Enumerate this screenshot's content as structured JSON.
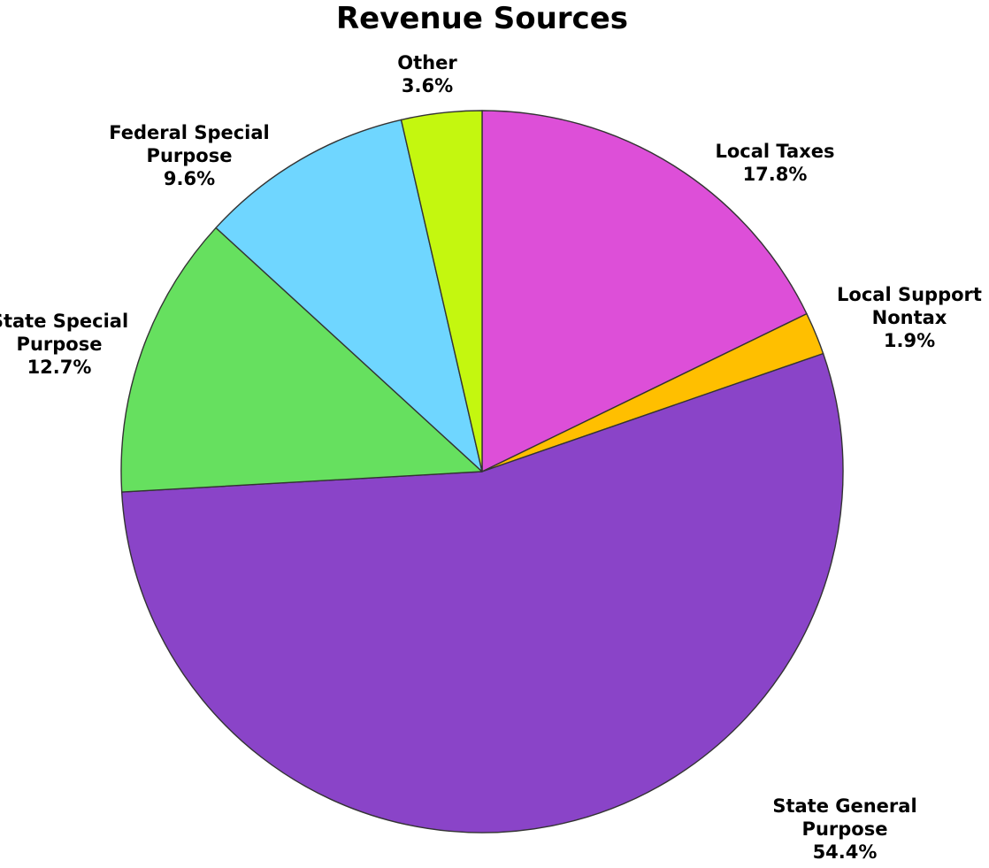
{
  "chart_data": {
    "type": "pie",
    "title": "Revenue Sources",
    "slices": [
      {
        "label": [
          "Local Taxes"
        ],
        "value": 17.8,
        "display": "17.8%",
        "color": "#dd4fd8"
      },
      {
        "label": [
          "Local Support",
          "Nontax"
        ],
        "value": 1.9,
        "display": "1.9%",
        "color": "#ffbf00"
      },
      {
        "label": [
          "State General",
          "Purpose"
        ],
        "value": 54.4,
        "display": "54.4%",
        "color": "#8a44c8"
      },
      {
        "label": [
          "State Special",
          "Purpose"
        ],
        "value": 12.7,
        "display": "12.7%",
        "color": "#66e05f"
      },
      {
        "label": [
          "Federal Special",
          "Purpose"
        ],
        "value": 9.6,
        "display": "9.6%",
        "color": "#6fd6ff"
      },
      {
        "label": [
          "Other"
        ],
        "value": 3.6,
        "display": "3.6%",
        "color": "#c4f70f"
      }
    ],
    "start_angle": "12 o'clock",
    "direction": "clockwise",
    "legend": "none"
  }
}
